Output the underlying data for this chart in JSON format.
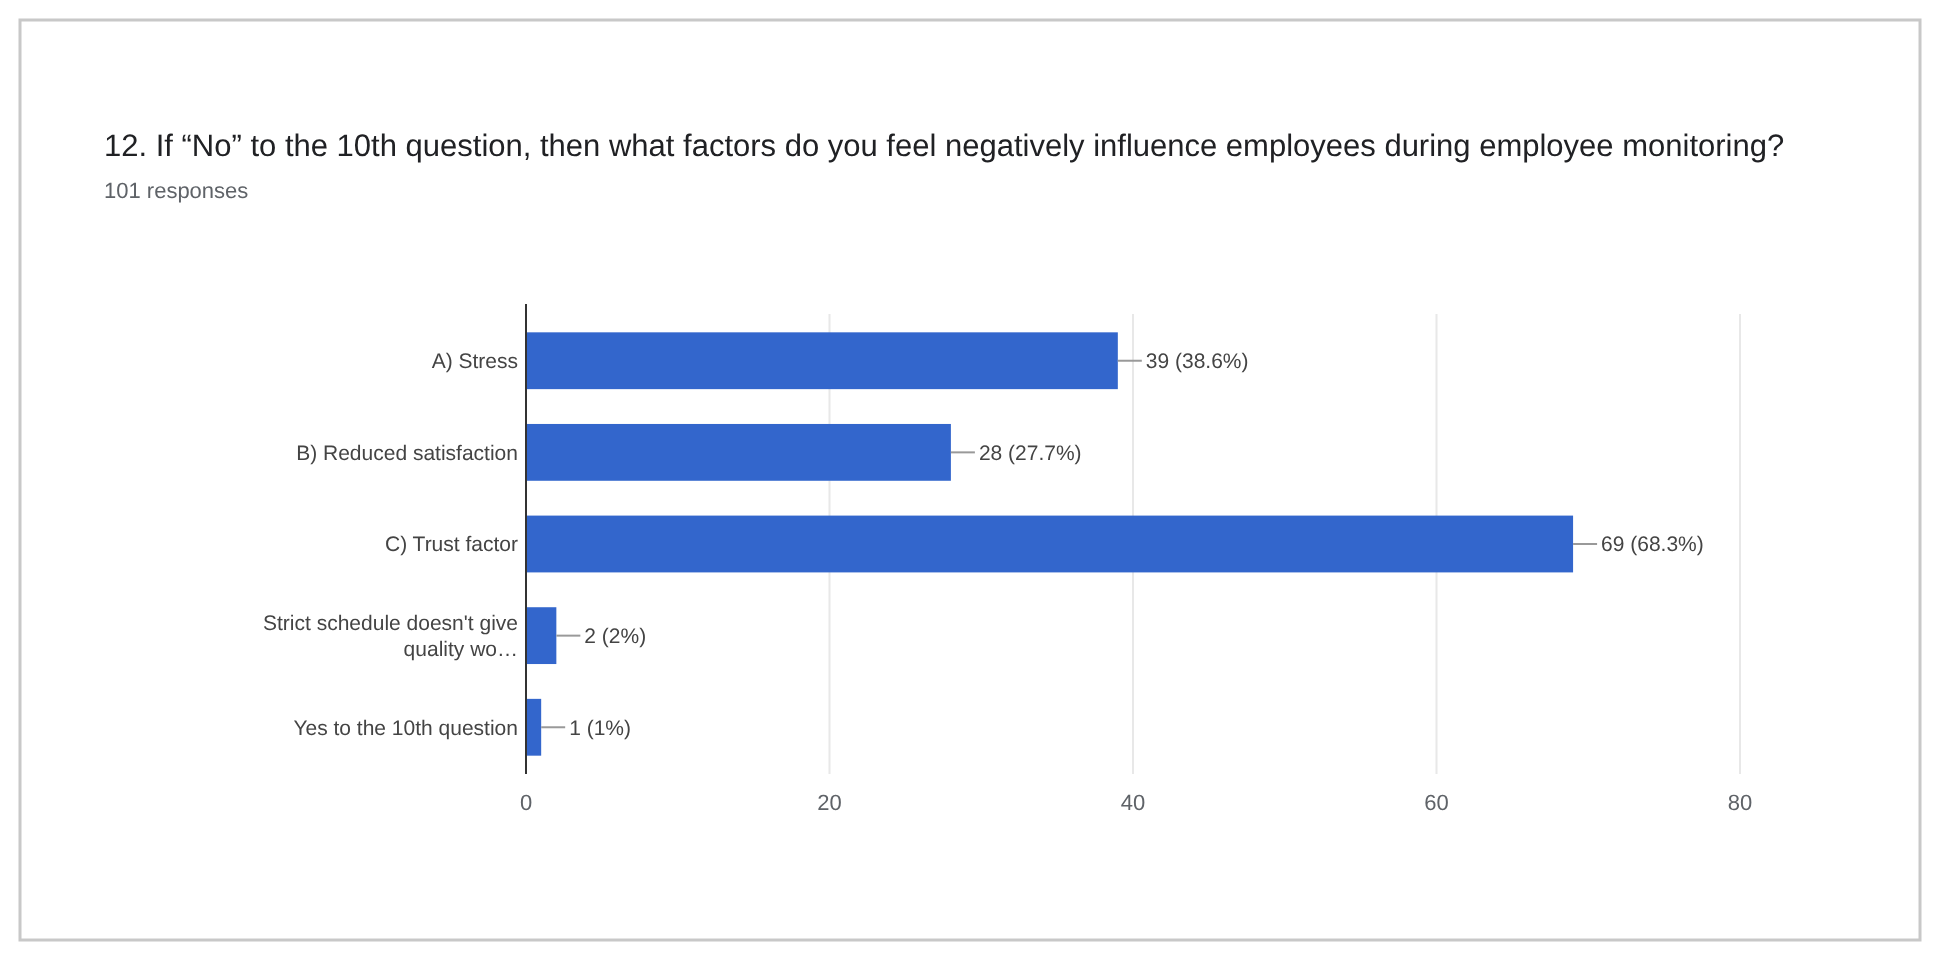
{
  "chart_data": {
    "type": "bar",
    "orientation": "horizontal",
    "title": "12. If “No” to the 10th question, then what factors do you feel negatively influence employees during employee monitoring?",
    "subtitle": "101 responses",
    "categories": [
      "A) Stress",
      "B) Reduced satisfaction",
      "C) Trust factor",
      "Strict schedule doesn't give quality wo…",
      "Yes to the 10th question"
    ],
    "values": [
      39,
      28,
      69,
      2,
      1
    ],
    "value_labels": [
      "39 (38.6%)",
      "28 (27.7%)",
      "69 (68.3%)",
      "2 (2%)",
      "1 (1%)"
    ],
    "color": "#3366cc",
    "xlim": [
      0,
      80
    ],
    "xticks": [
      0,
      20,
      40,
      60,
      80
    ],
    "grid": "x"
  }
}
